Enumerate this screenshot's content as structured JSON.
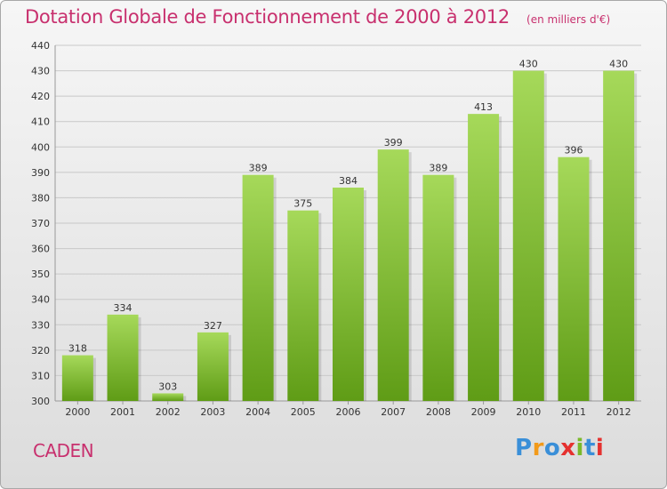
{
  "title": "Dotation Globale de Fonctionnement de 2000 à 2012",
  "subtitle": "(en milliers d'€)",
  "place": "CADEN",
  "logo": {
    "text": "Proxiti",
    "colors": [
      "#3a8fd8",
      "#f29a1a",
      "#3a8fd8",
      "#e5312f",
      "#7ab92a",
      "#3a8fd8",
      "#e5312f"
    ]
  },
  "colors": {
    "bar_light": "#a6d95a",
    "bar_dark": "#5f9c16",
    "title": "#c8306e",
    "grid": "#c8c8c8"
  },
  "chart_data": {
    "type": "bar",
    "categories": [
      "2000",
      "2001",
      "2002",
      "2003",
      "2004",
      "2005",
      "2006",
      "2007",
      "2008",
      "2009",
      "2010",
      "2011",
      "2012"
    ],
    "values": [
      318,
      334,
      303,
      327,
      389,
      375,
      384,
      399,
      389,
      413,
      430,
      396,
      430
    ],
    "ylim": [
      300,
      440
    ],
    "yticks": [
      300,
      310,
      320,
      330,
      340,
      350,
      360,
      370,
      380,
      390,
      400,
      410,
      420,
      430,
      440
    ],
    "grid": true,
    "data_labels": true
  }
}
